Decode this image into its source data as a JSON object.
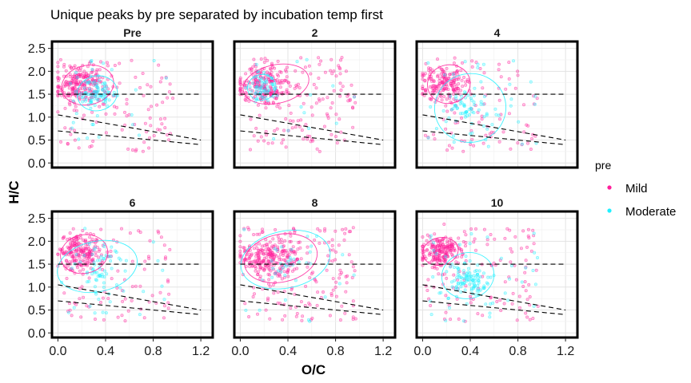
{
  "chart_data": {
    "type": "scatter",
    "title": "Unique peaks by pre separated by incubation temp first",
    "xlabel": "O/C",
    "ylabel": "H/C",
    "xlim": [
      -0.05,
      1.3
    ],
    "ylim": [
      -0.1,
      2.65
    ],
    "x_ticks": [
      "0.0",
      "0.4",
      "0.8",
      "1.2"
    ],
    "x_tick_values": [
      0.0,
      0.4,
      0.8,
      1.2
    ],
    "y_ticks": [
      "0.0",
      "0.5",
      "1.0",
      "1.5",
      "2.0",
      "2.5"
    ],
    "y_tick_values": [
      0.0,
      0.5,
      1.0,
      1.5,
      2.0,
      2.5
    ],
    "grid": true,
    "facet_layout": "2 rows x 3 columns",
    "reference_lines": [
      {
        "style": "dashed",
        "points": [
          [
            0.0,
            1.5
          ],
          [
            1.2,
            1.5
          ]
        ]
      },
      {
        "style": "dashed",
        "points": [
          [
            0.0,
            1.05
          ],
          [
            1.2,
            0.5
          ]
        ]
      },
      {
        "style": "dashed",
        "points": [
          [
            0.0,
            0.7
          ],
          [
            1.2,
            0.4
          ]
        ]
      }
    ],
    "legend": {
      "title": "pre",
      "placement": "right",
      "entries": [
        {
          "label": "Mild",
          "color": "#ff1f9a"
        },
        {
          "label": "Moderate",
          "color": "#1ff0ff"
        }
      ]
    },
    "facets": [
      {
        "label": "Pre",
        "groups": [
          {
            "name": "Mild",
            "n": 320,
            "cx": 0.18,
            "cy": 1.72,
            "sx": 0.17,
            "sy": 0.38,
            "tail": 0.35
          },
          {
            "name": "Moderate",
            "n": 110,
            "cx": 0.32,
            "cy": 1.5,
            "sx": 0.12,
            "sy": 0.3,
            "tail": 0.25
          }
        ],
        "ellipses": [
          {
            "name": "Mild",
            "cx": 0.25,
            "cy": 1.7,
            "rx": 0.22,
            "ry": 0.43
          },
          {
            "name": "Moderate",
            "cx": 0.33,
            "cy": 1.52,
            "rx": 0.17,
            "ry": 0.38
          }
        ]
      },
      {
        "label": "2",
        "groups": [
          {
            "name": "Mild",
            "n": 330,
            "cx": 0.2,
            "cy": 1.7,
            "sx": 0.18,
            "sy": 0.38,
            "tail": 0.4
          },
          {
            "name": "Moderate",
            "n": 70,
            "cx": 0.18,
            "cy": 1.62,
            "sx": 0.1,
            "sy": 0.3,
            "tail": 0.2
          }
        ],
        "ellipses": [
          {
            "name": "Mild",
            "cx": 0.3,
            "cy": 1.72,
            "rx": 0.28,
            "ry": 0.42
          },
          {
            "name": "Moderate",
            "cx": 0.18,
            "cy": 1.65,
            "rx": 0.12,
            "ry": 0.28
          }
        ]
      },
      {
        "label": "4",
        "groups": [
          {
            "name": "Mild",
            "n": 260,
            "cx": 0.18,
            "cy": 1.72,
            "sx": 0.16,
            "sy": 0.36,
            "tail": 0.35
          },
          {
            "name": "Moderate",
            "n": 90,
            "cx": 0.38,
            "cy": 1.2,
            "sx": 0.16,
            "sy": 0.4,
            "tail": 0.3
          }
        ],
        "ellipses": [
          {
            "name": "Mild",
            "cx": 0.22,
            "cy": 1.72,
            "rx": 0.18,
            "ry": 0.42
          },
          {
            "name": "Moderate",
            "cx": 0.4,
            "cy": 1.2,
            "rx": 0.3,
            "ry": 0.75
          }
        ]
      },
      {
        "label": "6",
        "groups": [
          {
            "name": "Mild",
            "n": 280,
            "cx": 0.18,
            "cy": 1.75,
            "sx": 0.15,
            "sy": 0.34,
            "tail": 0.35
          },
          {
            "name": "Moderate",
            "n": 80,
            "cx": 0.35,
            "cy": 1.45,
            "sx": 0.16,
            "sy": 0.42,
            "tail": 0.3
          }
        ],
        "ellipses": [
          {
            "name": "Mild",
            "cx": 0.22,
            "cy": 1.72,
            "rx": 0.2,
            "ry": 0.42
          },
          {
            "name": "Moderate",
            "cx": 0.33,
            "cy": 1.45,
            "rx": 0.34,
            "ry": 0.55
          }
        ]
      },
      {
        "label": "8",
        "groups": [
          {
            "name": "Mild",
            "n": 380,
            "cx": 0.25,
            "cy": 1.65,
            "sx": 0.22,
            "sy": 0.4,
            "tail": 0.45
          },
          {
            "name": "Moderate",
            "n": 40,
            "cx": 0.4,
            "cy": 1.55,
            "sx": 0.2,
            "sy": 0.35,
            "tail": 0.3
          }
        ],
        "ellipses": [
          {
            "name": "Mild",
            "cx": 0.34,
            "cy": 1.63,
            "rx": 0.31,
            "ry": 0.52
          },
          {
            "name": "Moderate",
            "cx": 0.38,
            "cy": 1.6,
            "rx": 0.38,
            "ry": 0.62
          }
        ]
      },
      {
        "label": "10",
        "groups": [
          {
            "name": "Mild",
            "n": 300,
            "cx": 0.15,
            "cy": 1.78,
            "sx": 0.14,
            "sy": 0.3,
            "tail": 0.35
          },
          {
            "name": "Moderate",
            "n": 140,
            "cx": 0.4,
            "cy": 1.2,
            "sx": 0.14,
            "sy": 0.35,
            "tail": 0.25
          }
        ],
        "ellipses": [
          {
            "name": "Mild",
            "cx": 0.15,
            "cy": 1.78,
            "rx": 0.15,
            "ry": 0.3
          },
          {
            "name": "Moderate",
            "cx": 0.38,
            "cy": 1.25,
            "rx": 0.22,
            "ry": 0.5
          }
        ]
      }
    ]
  }
}
